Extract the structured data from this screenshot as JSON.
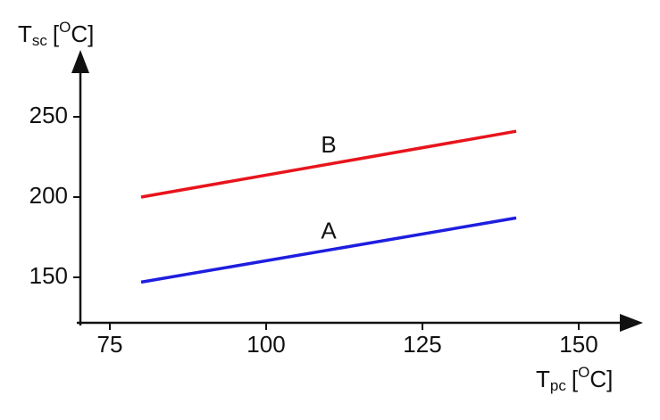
{
  "chart_data": {
    "type": "line",
    "xlabel": [
      "T",
      "pc",
      "[",
      "O",
      "C]"
    ],
    "ylabel": [
      "T",
      "sc",
      "[",
      "O",
      "C]"
    ],
    "x": [
      80,
      140
    ],
    "series": [
      {
        "name": "A",
        "color": "#1e1ee0",
        "values": [
          147,
          187
        ]
      },
      {
        "name": "B",
        "color": "#e8141c",
        "values": [
          200,
          241
        ]
      }
    ],
    "xlim": [
      70,
      160
    ],
    "xticks": [
      75,
      100,
      125,
      150
    ],
    "ylim": [
      120,
      290
    ],
    "yticks": [
      150,
      200,
      250
    ],
    "grid": false
  }
}
